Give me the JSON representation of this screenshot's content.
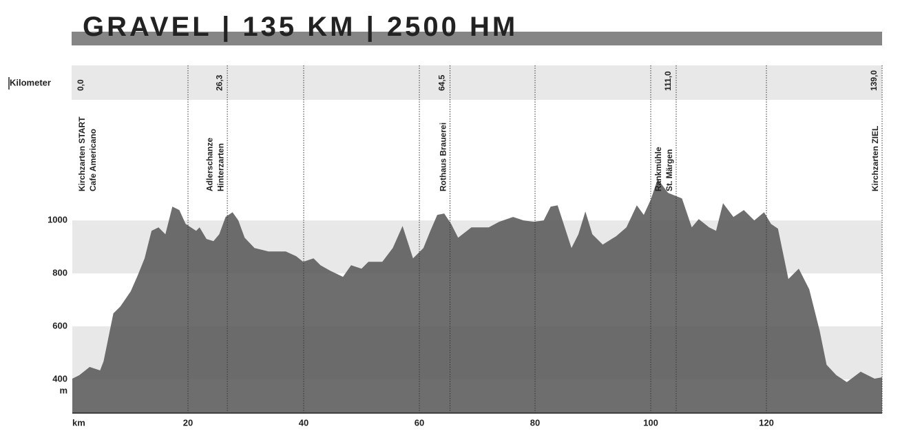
{
  "chart_data": {
    "type": "area",
    "title": "GRAVEL | 135 KM | 2500 HM",
    "x_label": "km",
    "y_label": "m",
    "km_row_label": "Kilometer",
    "color": "#555555",
    "grid": true,
    "xlim": [
      0,
      140
    ],
    "xticks": [
      20,
      40,
      60,
      80,
      100,
      120
    ],
    "ylim": [
      273,
      1455
    ],
    "yticks": [
      1000,
      800,
      600,
      400
    ],
    "x": [
      0,
      1.2,
      3.0,
      4.8,
      5.4,
      7.1,
      8.3,
      10.1,
      11.3,
      12.5,
      13.1,
      13.7,
      14.9,
      16.1,
      17.3,
      18.5,
      19.6,
      21.4,
      22.0,
      23.2,
      24.4,
      25.4,
      26.5,
      27.7,
      28.7,
      29.8,
      31.5,
      33.9,
      35.1,
      36.9,
      38.7,
      39.9,
      41.7,
      42.9,
      44.6,
      46.8,
      48.2,
      50.0,
      51.2,
      53.6,
      55.4,
      57.1,
      58.9,
      60.7,
      61.9,
      63.1,
      64.3,
      65.5,
      66.7,
      69.0,
      72.0,
      73.8,
      76.2,
      78.0,
      79.8,
      81.5,
      82.7,
      83.9,
      86.3,
      87.5,
      88.7,
      89.9,
      91.7,
      94.0,
      95.8,
      97.6,
      98.8,
      100.0,
      101.2,
      103.0,
      105.4,
      107.1,
      108.3,
      110.1,
      111.3,
      112.5,
      114.3,
      116.1,
      117.9,
      119.6,
      120.8,
      122.0,
      123.8,
      125.6,
      127.4,
      129.2,
      130.4,
      132.1,
      133.9,
      136.3,
      138.7,
      140.0
    ],
    "values": [
      403,
      416,
      447,
      434,
      468,
      649,
      675,
      732,
      792,
      857,
      909,
      961,
      974,
      948,
      1052,
      1039,
      987,
      961,
      974,
      930,
      922,
      948,
      1013,
      1031,
      1000,
      935,
      896,
      883,
      883,
      883,
      865,
      844,
      857,
      831,
      810,
      787,
      831,
      818,
      844,
      844,
      896,
      979,
      857,
      896,
      961,
      1021,
      1026,
      987,
      935,
      974,
      974,
      995,
      1013,
      1000,
      995,
      1000,
      1052,
      1057,
      896,
      948,
      1034,
      948,
      909,
      940,
      974,
      1057,
      1021,
      1078,
      1156,
      1104,
      1083,
      974,
      1005,
      974,
      961,
      1065,
      1013,
      1039,
      1000,
      1031,
      987,
      969,
      779,
      818,
      740,
      584,
      455,
      416,
      390,
      429,
      403,
      408
    ],
    "stations": [
      {
        "km_label": "0,0",
        "axis_km": 0,
        "lines": [
          "Kirchzarten START",
          "Cafe Americano"
        ]
      },
      {
        "km_label": "26,3",
        "axis_km": 26.8,
        "lines": [
          "Adlerschanze",
          "Hinterzarten"
        ]
      },
      {
        "km_label": "64,5",
        "axis_km": 65.3,
        "lines": [
          "Rothaus Brauerei"
        ]
      },
      {
        "km_label": "111,0",
        "axis_km": 104.4,
        "lines": [
          "Rankmühle",
          "St. Märgen"
        ]
      },
      {
        "km_label": "139,0",
        "axis_km": 140,
        "lines": [
          "Kirchzarten ZIEL"
        ]
      }
    ]
  }
}
